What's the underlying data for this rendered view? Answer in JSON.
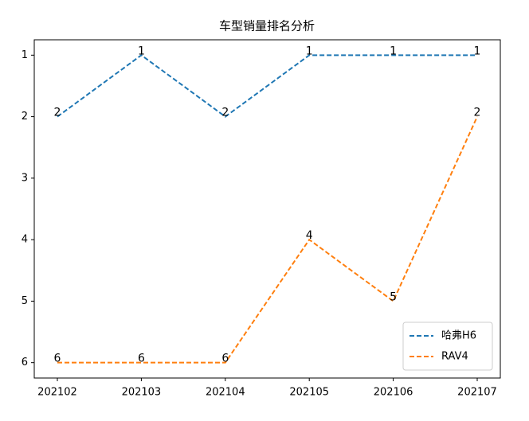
{
  "chart_data": {
    "type": "line",
    "title": "车型销量排名分析",
    "categories": [
      "202102",
      "202103",
      "202104",
      "202105",
      "202106",
      "202107"
    ],
    "series": [
      {
        "name": "哈弗H6",
        "color": "#1f77b4",
        "values": [
          2,
          1,
          2,
          1,
          1,
          1
        ]
      },
      {
        "name": "RAV4",
        "color": "#ff7f0e",
        "values": [
          6,
          6,
          6,
          4,
          5,
          2
        ]
      }
    ],
    "ylim": [
      6.25,
      0.75
    ],
    "yticks": [
      1,
      2,
      3,
      4,
      5,
      6
    ],
    "line_style": "dashed",
    "legend": "lower right"
  }
}
